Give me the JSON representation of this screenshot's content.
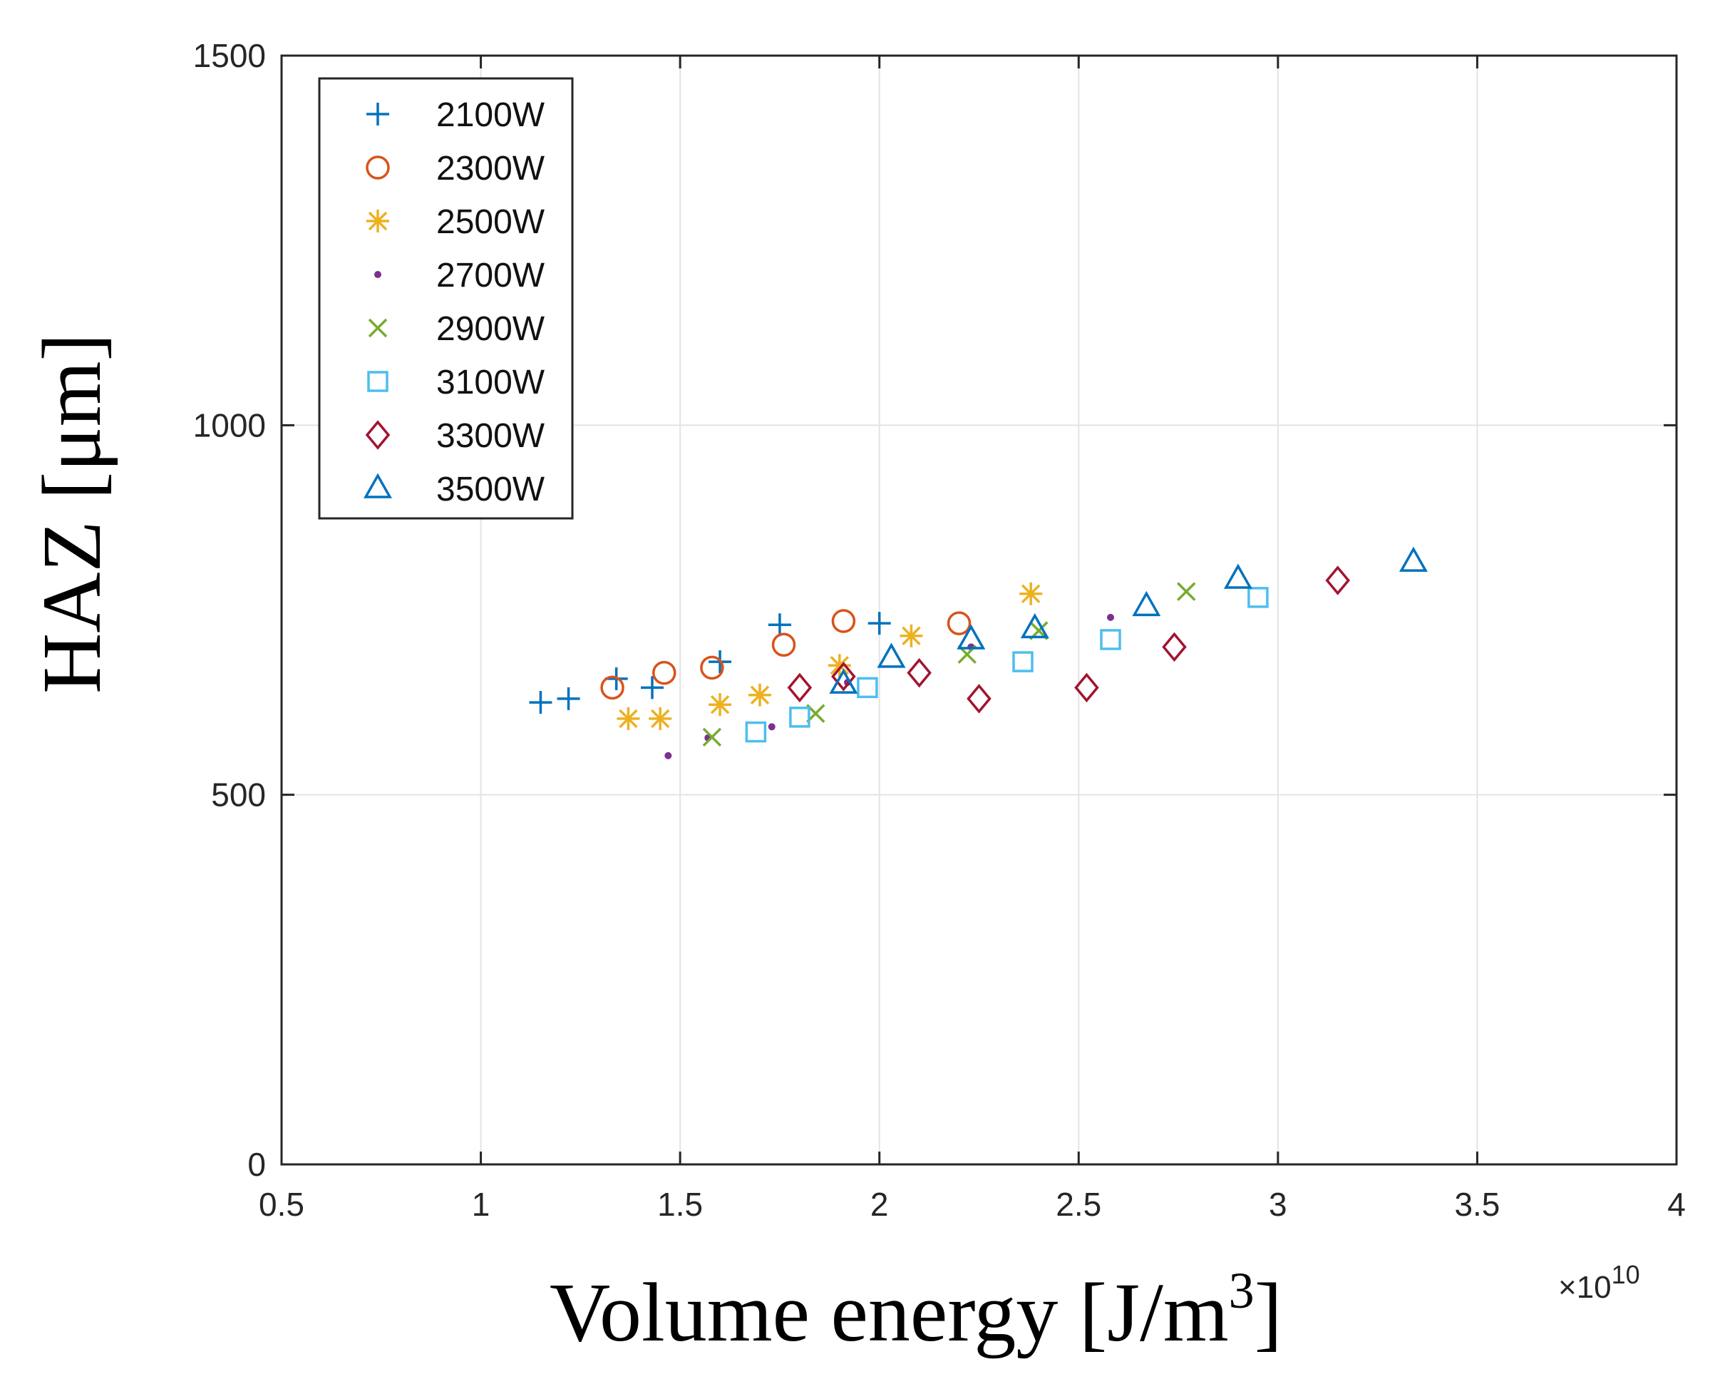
{
  "chart_data": {
    "type": "scatter",
    "title": "",
    "xlabel": "Volume energy [J/m",
    "xlabel_superscript": "3",
    "xlabel_suffix": "]",
    "ylabel": "HAZ [μm]",
    "xlim": [
      0.5,
      4
    ],
    "ylim": [
      0,
      1500
    ],
    "x_ticks": [
      0.5,
      1,
      1.5,
      2,
      2.5,
      3,
      3.5,
      4
    ],
    "x_tick_labels": [
      "0.5",
      "1",
      "1.5",
      "2",
      "2.5",
      "3",
      "3.5",
      "4"
    ],
    "y_ticks": [
      0,
      500,
      1000,
      1500
    ],
    "y_tick_labels": [
      "0",
      "500",
      "1000",
      "1500"
    ],
    "x_multiplier_prefix": "×10",
    "x_multiplier_exponent": "10",
    "grid": true,
    "legend_position": "top-left",
    "series": [
      {
        "name": "2100W",
        "marker": "plus",
        "color": "#0072BD",
        "points": [
          [
            1.15,
            625
          ],
          [
            1.22,
            630
          ],
          [
            1.34,
            657
          ],
          [
            1.43,
            645
          ],
          [
            1.6,
            680
          ],
          [
            1.75,
            730
          ],
          [
            2.0,
            732
          ]
        ]
      },
      {
        "name": "2300W",
        "marker": "circle",
        "color": "#D95319",
        "points": [
          [
            1.33,
            645
          ],
          [
            1.46,
            665
          ],
          [
            1.58,
            672
          ],
          [
            1.76,
            703
          ],
          [
            1.91,
            735
          ],
          [
            2.2,
            732
          ]
        ]
      },
      {
        "name": "2500W",
        "marker": "asterisk",
        "color": "#EDB120",
        "points": [
          [
            1.37,
            603
          ],
          [
            1.45,
            603
          ],
          [
            1.6,
            622
          ],
          [
            1.7,
            635
          ],
          [
            1.9,
            675
          ],
          [
            2.08,
            715
          ],
          [
            2.38,
            772
          ]
        ]
      },
      {
        "name": "2700W",
        "marker": "point",
        "color": "#7E2F8E",
        "points": [
          [
            1.47,
            553
          ],
          [
            1.57,
            577
          ],
          [
            1.73,
            592
          ],
          [
            1.92,
            652
          ],
          [
            2.23,
            700
          ],
          [
            2.58,
            740
          ]
        ]
      },
      {
        "name": "2900W",
        "marker": "cross",
        "color": "#77AC30",
        "points": [
          [
            1.58,
            578
          ],
          [
            1.84,
            610
          ],
          [
            2.22,
            690
          ],
          [
            2.4,
            722
          ],
          [
            2.77,
            775
          ]
        ]
      },
      {
        "name": "3100W",
        "marker": "square",
        "color": "#4DBEEE",
        "points": [
          [
            1.69,
            585
          ],
          [
            1.8,
            605
          ],
          [
            1.97,
            645
          ],
          [
            2.36,
            680
          ],
          [
            2.58,
            710
          ],
          [
            2.95,
            767
          ]
        ]
      },
      {
        "name": "3300W",
        "marker": "diamond",
        "color": "#A2142F",
        "points": [
          [
            1.8,
            645
          ],
          [
            1.91,
            660
          ],
          [
            2.1,
            665
          ],
          [
            2.25,
            630
          ],
          [
            2.52,
            645
          ],
          [
            2.74,
            700
          ],
          [
            3.15,
            790
          ]
        ]
      },
      {
        "name": "3500W",
        "marker": "triangle",
        "color": "#0072BD",
        "points": [
          [
            1.91,
            650
          ],
          [
            2.03,
            685
          ],
          [
            2.23,
            710
          ],
          [
            2.39,
            725
          ],
          [
            2.67,
            755
          ],
          [
            2.9,
            792
          ],
          [
            3.34,
            815
          ]
        ]
      }
    ]
  }
}
